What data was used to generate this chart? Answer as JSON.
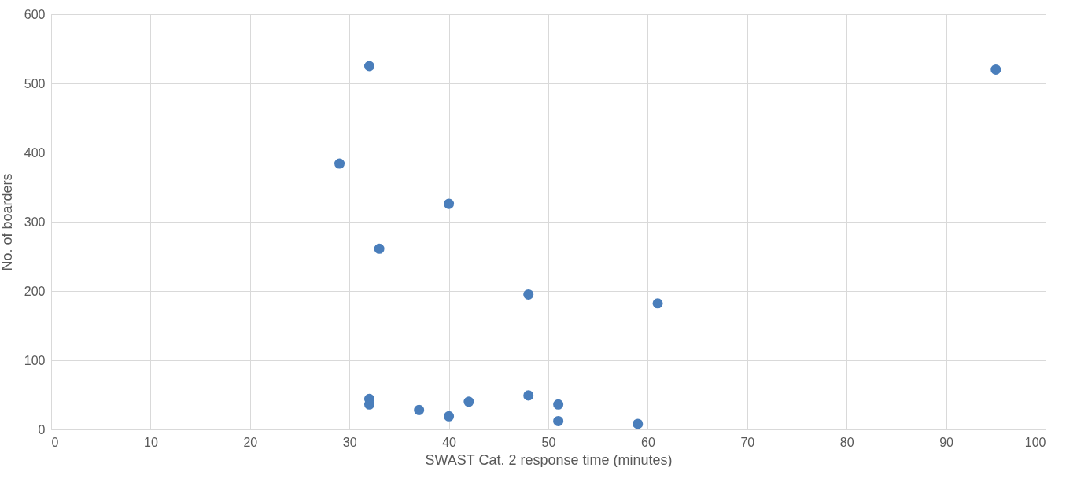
{
  "chart_data": {
    "type": "scatter",
    "xlabel": "SWAST Cat. 2 response time (minutes)",
    "ylabel": "No. of boarders",
    "x": [
      32,
      95,
      29,
      40,
      33,
      48,
      61,
      32,
      32,
      37,
      40,
      42,
      48,
      51,
      51,
      59
    ],
    "values": [
      525,
      520,
      384,
      326,
      261,
      195,
      182,
      44,
      36,
      28,
      19,
      40,
      49,
      36,
      12,
      8
    ],
    "color": "#4a7ebb",
    "marker": "circle",
    "grid": true,
    "xlim": [
      0,
      100
    ],
    "xticks": [
      0,
      10,
      20,
      30,
      40,
      50,
      60,
      70,
      80,
      90,
      100
    ],
    "ylim": [
      0,
      600
    ],
    "yticks": [
      0,
      100,
      200,
      300,
      400,
      500,
      600
    ]
  }
}
